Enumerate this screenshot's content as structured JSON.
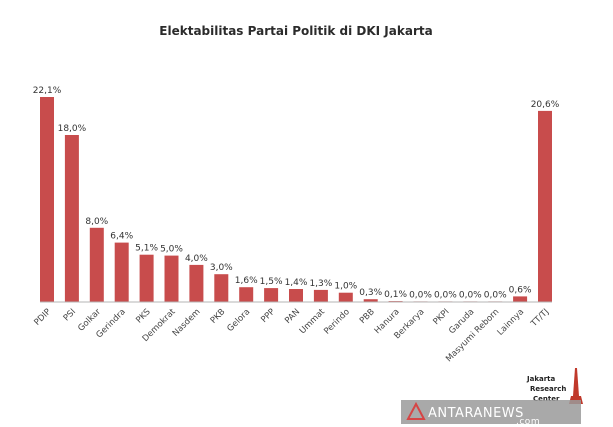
{
  "colors": {
    "bar": "#c84c4c",
    "axis": "#b5b5b5",
    "watermark_bg": "#9a9a9a",
    "logo_red": "#c0392b"
  },
  "chart_data": {
    "type": "bar",
    "title": "Elektabilitas Partai Politik di DKI Jakarta",
    "categories": [
      "PDIP",
      "PSI",
      "Golkar",
      "Gerindra",
      "PKS",
      "Demokrat",
      "Nasdem",
      "PKB",
      "Gelora",
      "PPP",
      "PAN",
      "Ummat",
      "Perindo",
      "PBB",
      "Hanura",
      "Berkarya",
      "PKPI",
      "Garuda",
      "Masyumi Reborn",
      "Lainnya",
      "TT/TJ"
    ],
    "values": [
      22.1,
      18.0,
      8.0,
      6.4,
      5.1,
      5.0,
      4.0,
      3.0,
      1.6,
      1.5,
      1.4,
      1.3,
      1.0,
      0.3,
      0.1,
      0.0,
      0.0,
      0.0,
      0.0,
      0.6,
      20.6
    ],
    "data_labels": [
      "22,1%",
      "18,0%",
      "8,0%",
      "6,4%",
      "5,1%",
      "5,0%",
      "4,0%",
      "3,0%",
      "1,6%",
      "1,5%",
      "1,4%",
      "1,3%",
      "1,0%",
      "0,3%",
      "0,1%",
      "0,0%",
      "0,0%",
      "0,0%",
      "0,0%",
      "0,6%",
      "20,6%"
    ],
    "xlabel": "",
    "ylabel": "",
    "ylim": [
      0,
      22.1
    ],
    "grid": false,
    "legend": "none"
  },
  "logo": {
    "line1": "Jakarta",
    "line2": "Research",
    "line3": "Center"
  },
  "watermark": {
    "text": "ANTARANEWS",
    "suffix": ".com"
  }
}
